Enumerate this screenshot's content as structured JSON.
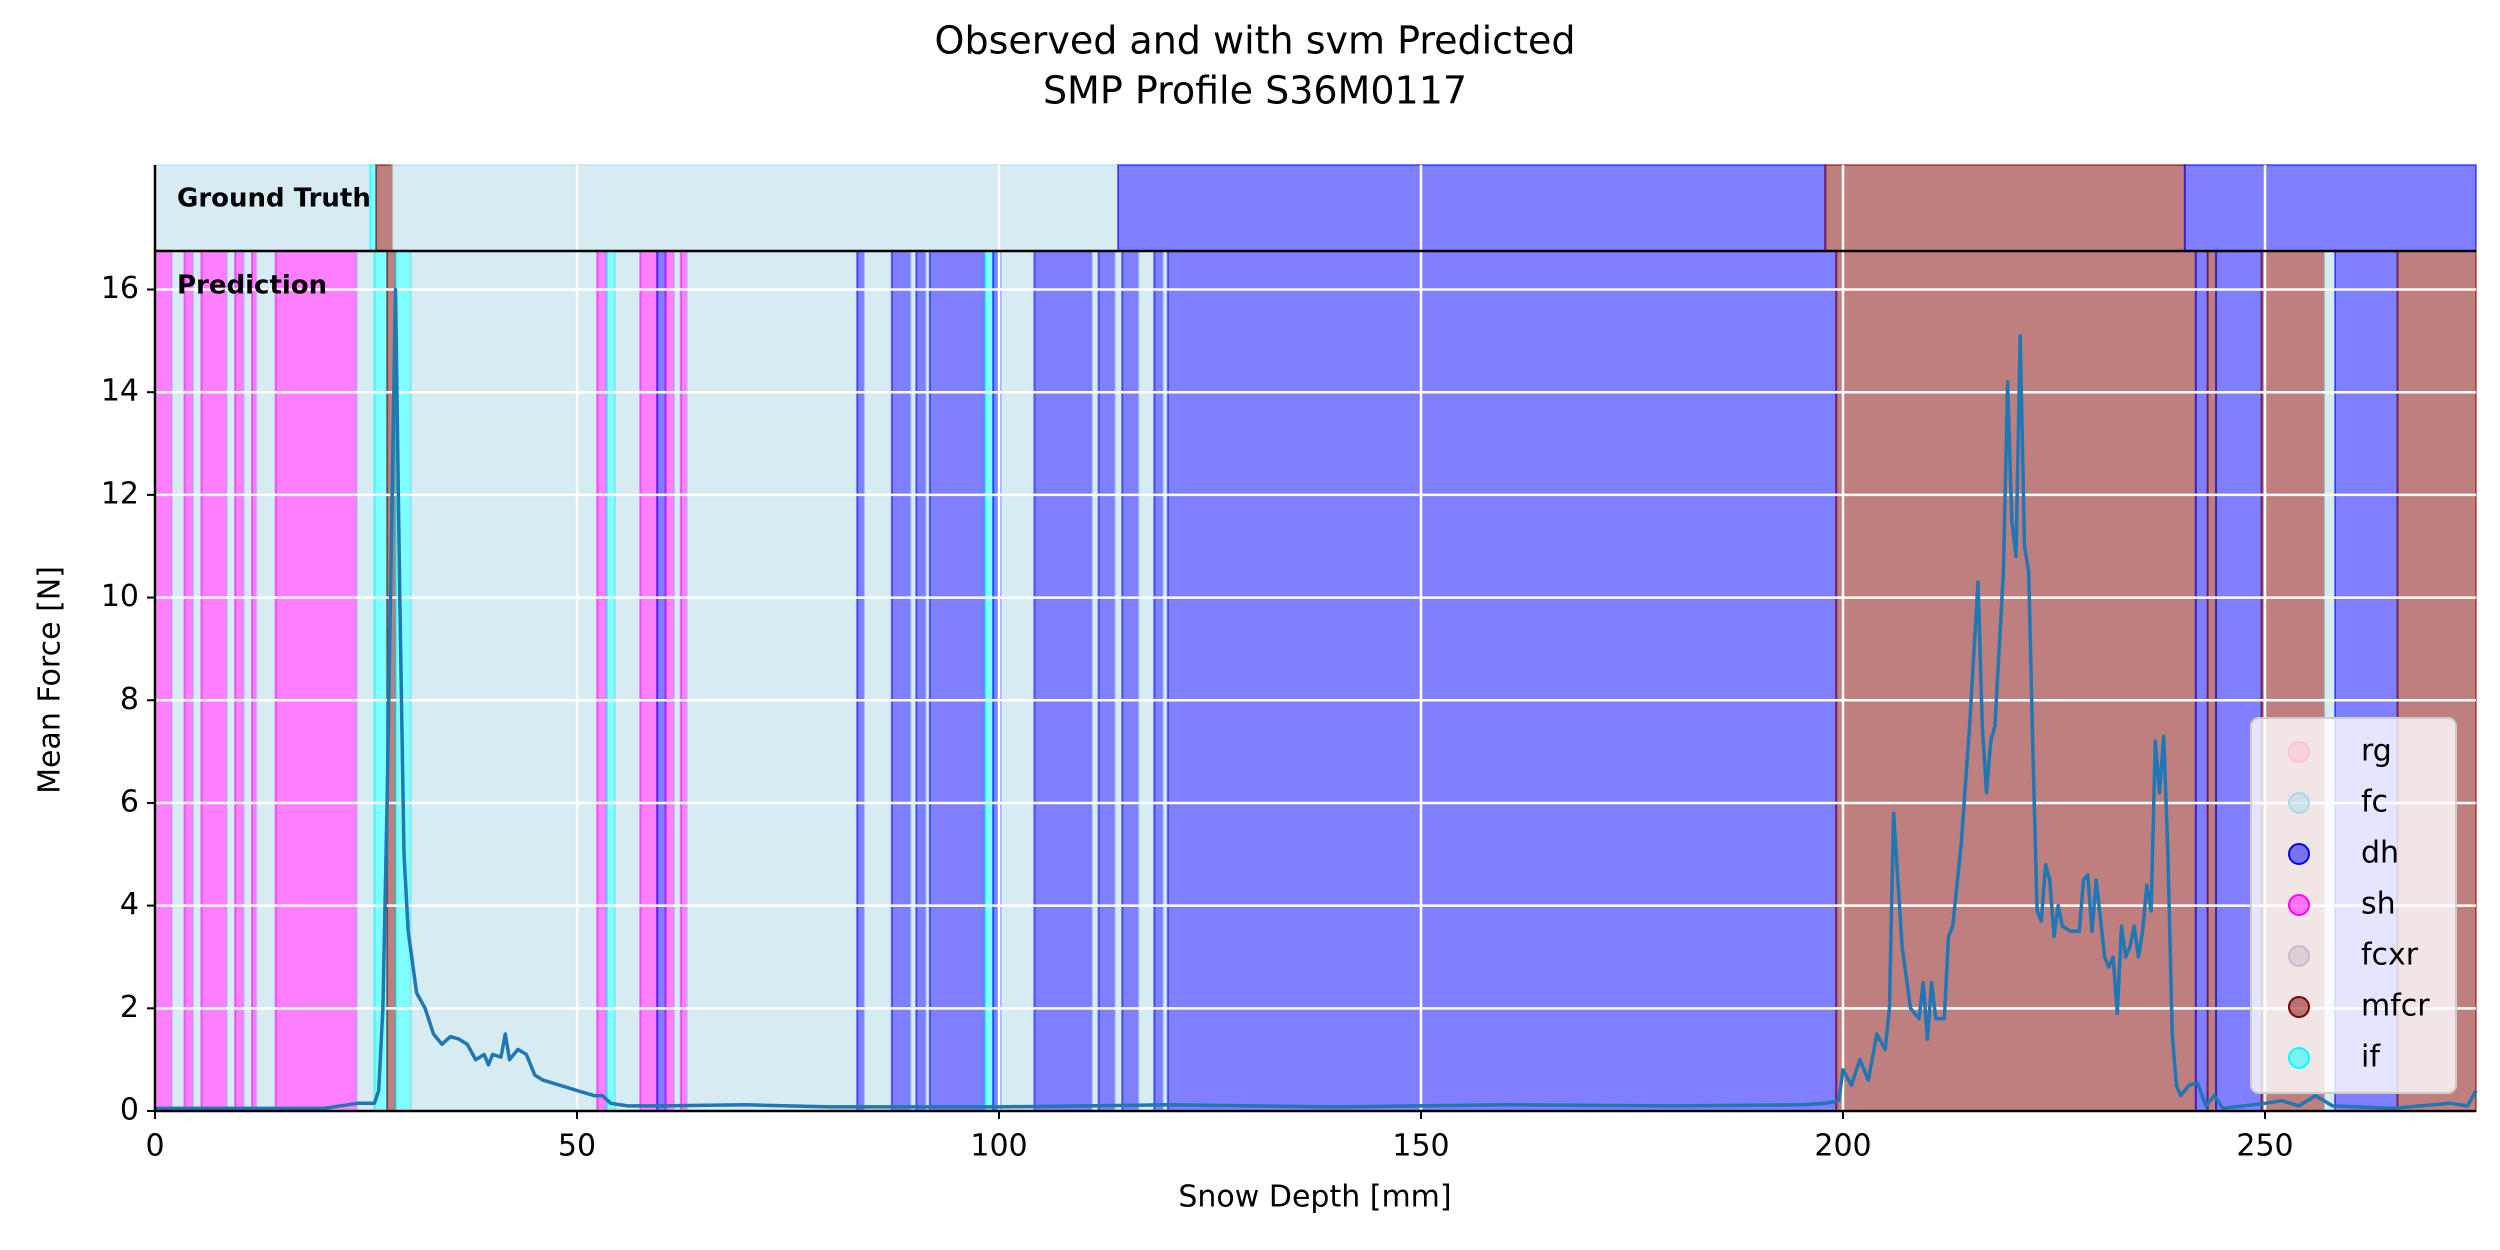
{
  "chart_data": {
    "type": "line",
    "title": "Observed and with svm Predicted",
    "subtitle": "SMP Profile S36M0117",
    "x_label": "Snow Depth [mm]",
    "y_label": "Mean Force [N]",
    "xlim": [
      0,
      275
    ],
    "xticks": [
      0,
      50,
      100,
      150,
      200,
      250
    ],
    "ylim": [
      0,
      16.75
    ],
    "yticks": [
      0,
      2,
      4,
      6,
      8,
      10,
      12,
      14,
      16
    ],
    "grid": true,
    "legend_loc": "lower right",
    "line_color": "#1f77b4",
    "classes": [
      {
        "name": "rg",
        "color": "#ffc0cb"
      },
      {
        "name": "fc",
        "color": "#add8e6"
      },
      {
        "name": "dh",
        "color": "#0000ff"
      },
      {
        "name": "sh",
        "color": "#ff00ff"
      },
      {
        "name": "fcxr",
        "color": "#c8b8c8"
      },
      {
        "name": "mfcr",
        "color": "#800000"
      },
      {
        "name": "if",
        "color": "#00ffff"
      }
    ],
    "ground_truth": {
      "label": "Ground Truth",
      "segments": [
        {
          "class": "fc",
          "start": 0,
          "end": 25.5
        },
        {
          "class": "if",
          "start": 25.5,
          "end": 26.2
        },
        {
          "class": "mfcr",
          "start": 26.2,
          "end": 28.1
        },
        {
          "class": "fc",
          "start": 28.1,
          "end": 114.1
        },
        {
          "class": "dh",
          "start": 114.1,
          "end": 197.9
        },
        {
          "class": "mfcr",
          "start": 197.9,
          "end": 240.5
        },
        {
          "class": "dh",
          "start": 240.5,
          "end": 275
        }
      ]
    },
    "prediction": {
      "label": "Prediction",
      "segments": [
        {
          "class": "sh",
          "start": 0,
          "end": 2
        },
        {
          "class": "fc",
          "start": 2,
          "end": 3.5
        },
        {
          "class": "sh",
          "start": 3.5,
          "end": 4.5
        },
        {
          "class": "fc",
          "start": 4.5,
          "end": 5.5
        },
        {
          "class": "sh",
          "start": 5.5,
          "end": 8.5
        },
        {
          "class": "fc",
          "start": 8.5,
          "end": 9.5
        },
        {
          "class": "sh",
          "start": 9.5,
          "end": 10.5
        },
        {
          "class": "fc",
          "start": 10.5,
          "end": 11.5
        },
        {
          "class": "sh",
          "start": 11.5,
          "end": 12
        },
        {
          "class": "fc",
          "start": 12,
          "end": 14.3
        },
        {
          "class": "sh",
          "start": 14.3,
          "end": 23.9
        },
        {
          "class": "fc",
          "start": 23.9,
          "end": 26
        },
        {
          "class": "if",
          "start": 26,
          "end": 27.5
        },
        {
          "class": "mfcr",
          "start": 27.5,
          "end": 28.5
        },
        {
          "class": "if",
          "start": 28.5,
          "end": 30.3
        },
        {
          "class": "fc",
          "start": 30.3,
          "end": 52.4
        },
        {
          "class": "sh",
          "start": 52.4,
          "end": 53.5
        },
        {
          "class": "if",
          "start": 53.5,
          "end": 54.5
        },
        {
          "class": "fc",
          "start": 54.5,
          "end": 57.5
        },
        {
          "class": "sh",
          "start": 57.5,
          "end": 59.5
        },
        {
          "class": "dh",
          "start": 59.5,
          "end": 60.5
        },
        {
          "class": "sh",
          "start": 60.5,
          "end": 61.5
        },
        {
          "class": "fc",
          "start": 61.5,
          "end": 62.3
        },
        {
          "class": "sh",
          "start": 62.3,
          "end": 63
        },
        {
          "class": "fc",
          "start": 63,
          "end": 83.2
        },
        {
          "class": "dh",
          "start": 83.2,
          "end": 84
        },
        {
          "class": "fc",
          "start": 84,
          "end": 87.3
        },
        {
          "class": "dh",
          "start": 87.3,
          "end": 89.5
        },
        {
          "class": "fc",
          "start": 89.5,
          "end": 90.2
        },
        {
          "class": "dh",
          "start": 90.2,
          "end": 91.3
        },
        {
          "class": "fc",
          "start": 91.3,
          "end": 91.8
        },
        {
          "class": "dh",
          "start": 91.8,
          "end": 98.3
        },
        {
          "class": "if",
          "start": 98.3,
          "end": 99.3
        },
        {
          "class": "dh",
          "start": 99.3,
          "end": 100.2
        },
        {
          "class": "fc",
          "start": 100.2,
          "end": 104.2
        },
        {
          "class": "dh",
          "start": 104.2,
          "end": 111
        },
        {
          "class": "fc",
          "start": 111,
          "end": 111.8
        },
        {
          "class": "dh",
          "start": 111.8,
          "end": 113.7
        },
        {
          "class": "fc",
          "start": 113.7,
          "end": 114.6
        },
        {
          "class": "dh",
          "start": 114.6,
          "end": 116.5
        },
        {
          "class": "fc",
          "start": 116.5,
          "end": 118.4
        },
        {
          "class": "dh",
          "start": 118.4,
          "end": 119.4
        },
        {
          "class": "fc",
          "start": 119.4,
          "end": 120
        },
        {
          "class": "dh",
          "start": 120,
          "end": 199.2
        },
        {
          "class": "mfcr",
          "start": 199.2,
          "end": 241.8
        },
        {
          "class": "dh",
          "start": 241.8,
          "end": 243.2
        },
        {
          "class": "mfcr",
          "start": 243.2,
          "end": 244.2
        },
        {
          "class": "dh",
          "start": 244.2,
          "end": 249.6
        },
        {
          "class": "mfcr",
          "start": 249.6,
          "end": 257
        },
        {
          "class": "fc",
          "start": 257,
          "end": 258.3
        },
        {
          "class": "dh",
          "start": 258.3,
          "end": 265.7
        },
        {
          "class": "mfcr",
          "start": 265.7,
          "end": 275
        }
      ]
    },
    "x": [
      0,
      10,
      20,
      24,
      26,
      26.5,
      27,
      27.5,
      28,
      28.5,
      29,
      29.5,
      30,
      31,
      32,
      33,
      34,
      35,
      36,
      37,
      38,
      39,
      39.5,
      40,
      41,
      41.5,
      42,
      43,
      44,
      45,
      46,
      48,
      50,
      52,
      53,
      54,
      56,
      60,
      70,
      80,
      100,
      120,
      140,
      160,
      180,
      195,
      198,
      199.5,
      200,
      201,
      202,
      203,
      204,
      205,
      205.5,
      206,
      207,
      208,
      209,
      209.5,
      210,
      210.5,
      211,
      212,
      212.5,
      213,
      214,
      215,
      216,
      216.5,
      217,
      217.5,
      218,
      219,
      219.5,
      220,
      220.5,
      221,
      221.5,
      222,
      222.5,
      223,
      223.5,
      224,
      224.5,
      225,
      225.5,
      226,
      227,
      228,
      228.5,
      229,
      229.5,
      230,
      231,
      231.5,
      232,
      232.5,
      233,
      233.5,
      234,
      234.5,
      235,
      235.5,
      236,
      236.5,
      237,
      237.5,
      238,
      238.5,
      239,
      239.5,
      240,
      241,
      242,
      243,
      244,
      245,
      250,
      252,
      254,
      256,
      258,
      265,
      272,
      274,
      275
    ],
    "values": [
      0.05,
      0.05,
      0.05,
      0.15,
      0.15,
      0.4,
      2,
      6,
      11,
      16,
      10,
      5,
      3.5,
      2.3,
      2.0,
      1.5,
      1.3,
      1.45,
      1.4,
      1.3,
      1.0,
      1.1,
      0.9,
      1.1,
      1.05,
      1.5,
      1.0,
      1.2,
      1.1,
      0.7,
      0.6,
      0.5,
      0.4,
      0.3,
      0.3,
      0.15,
      0.1,
      0.1,
      0.12,
      0.08,
      0.08,
      0.12,
      0.08,
      0.12,
      0.1,
      0.12,
      0.15,
      0.2,
      0.8,
      0.5,
      1.0,
      0.6,
      1.5,
      1.2,
      2.0,
      5.8,
      3.2,
      2.0,
      1.8,
      2.5,
      1.4,
      2.5,
      1.8,
      1.8,
      3.4,
      3.6,
      5.2,
      7.5,
      10.3,
      7.5,
      6.2,
      7.2,
      7.5,
      10.5,
      14.2,
      11.5,
      10.8,
      15.1,
      11,
      10.5,
      7,
      3.9,
      3.7,
      4.8,
      4.5,
      3.4,
      4.0,
      3.6,
      3.5,
      3.5,
      4.5,
      4.6,
      3.5,
      4.5,
      3.0,
      2.8,
      3.0,
      1.9,
      3.6,
      3.0,
      3.2,
      3.6,
      3.0,
      3.5,
      4.4,
      3.9,
      7.2,
      6.2,
      7.3,
      5.0,
      1.5,
      0.5,
      0.3,
      0.5,
      0.55,
      0.1,
      0.3,
      0.05,
      0.15,
      0.2,
      0.1,
      0.3,
      0.1,
      0.05,
      0.15,
      0.1,
      0.4
    ]
  }
}
